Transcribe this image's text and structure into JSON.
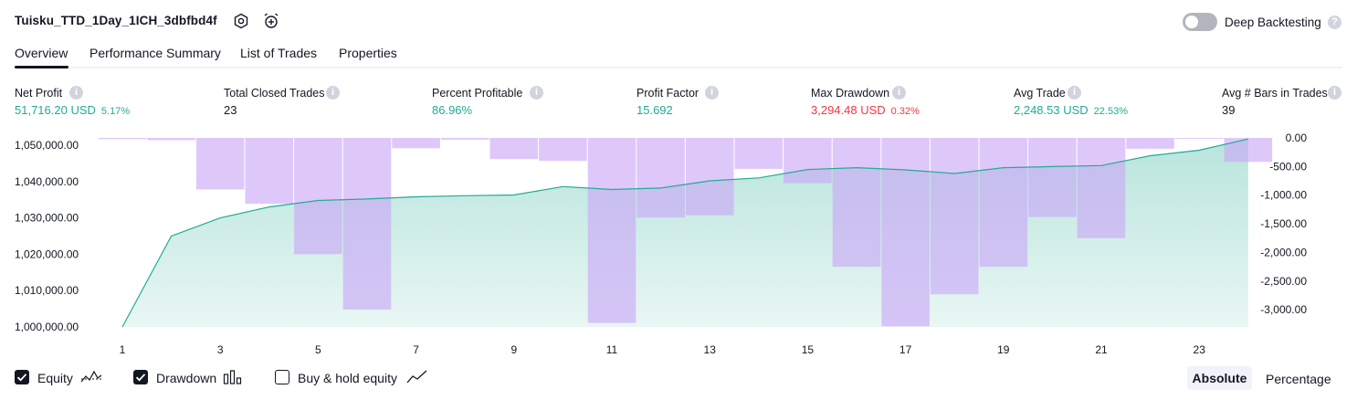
{
  "header": {
    "title": "Tuisku_TTD_1Day_1ICH_3dbfbd4f",
    "icons": [
      "settings-icon",
      "alarm-add-icon"
    ],
    "deep_backtesting_label": "Deep Backtesting",
    "deep_backtesting_enabled": false,
    "help_glyph": "?"
  },
  "tabs": [
    {
      "label": "Overview",
      "active": true
    },
    {
      "label": "Performance Summary",
      "active": false
    },
    {
      "label": "List of Trades",
      "active": false
    },
    {
      "label": "Properties",
      "active": false
    }
  ],
  "stats": [
    {
      "label": "Net Profit",
      "value": "51,716.20 USD",
      "sub": "5.17%",
      "color": "#22ab94"
    },
    {
      "label": "Total Closed Trades",
      "value": "23",
      "sub": "",
      "color": "#131722"
    },
    {
      "label": "Percent Profitable",
      "value": "86.96%",
      "sub": "",
      "color": "#22ab94"
    },
    {
      "label": "Profit Factor",
      "value": "15.692",
      "sub": "",
      "color": "#22ab94"
    },
    {
      "label": "Max Drawdown",
      "value": "3,294.48 USD",
      "sub": "0.32%",
      "color": "#f23645"
    },
    {
      "label": "Avg Trade",
      "value": "2,248.53 USD",
      "sub": "22.53%",
      "color": "#22ab94"
    },
    {
      "label": "Avg # Bars in Trades",
      "value": "39",
      "sub": "",
      "color": "#131722"
    }
  ],
  "info_glyph": "i",
  "chart_data": {
    "type": "area",
    "x": [
      1,
      2,
      3,
      4,
      5,
      6,
      7,
      8,
      9,
      10,
      11,
      12,
      13,
      14,
      15,
      16,
      17,
      18,
      19,
      20,
      21,
      22,
      23,
      24
    ],
    "x_tick_labels": [
      "1",
      "3",
      "5",
      "7",
      "9",
      "11",
      "13",
      "15",
      "17",
      "19",
      "21",
      "23"
    ],
    "left_ylim": [
      1000000,
      1052000
    ],
    "left_tick_labels": [
      "1,050,000.00",
      "1,040,000.00",
      "1,030,000.00",
      "1,020,000.00",
      "1,010,000.00",
      "1,000,000.00"
    ],
    "left_ticks": [
      1050000,
      1040000,
      1030000,
      1020000,
      1010000,
      1000000
    ],
    "right_ylim": [
      -3300,
      0
    ],
    "right_tick_labels": [
      "0.00",
      "-500.00",
      "-1,000.00",
      "-1,500.00",
      "-2,000.00",
      "-2,500.00",
      "-3,000.00"
    ],
    "right_ticks": [
      0,
      -500,
      -1000,
      -1500,
      -2000,
      -2500,
      -3000
    ],
    "series": [
      {
        "name": "Equity",
        "axis": "left",
        "color": "#22ab94",
        "values": [
          1000000,
          1025000,
          1030000,
          1033000,
          1034800,
          1035200,
          1035800,
          1036100,
          1036300,
          1038600,
          1037800,
          1038200,
          1040200,
          1041000,
          1043300,
          1043800,
          1043200,
          1042200,
          1043800,
          1044100,
          1044400,
          1047100,
          1048600,
          1051700
        ]
      },
      {
        "name": "Drawdown",
        "axis": "right",
        "color": "#c9a6f7",
        "values": [
          -20,
          -40,
          -900,
          -1150,
          -2030,
          -2995,
          -180,
          -30,
          -370,
          -400,
          -3230,
          -1390,
          -1350,
          -540,
          -790,
          -2250,
          -3290,
          -2730,
          -2250,
          -1380,
          -1750,
          -190,
          -10,
          -420
        ]
      }
    ]
  },
  "footer": {
    "equity_label": "Equity",
    "drawdown_label": "Drawdown",
    "buyhold_label": "Buy & hold equity",
    "equity_checked": true,
    "drawdown_checked": true,
    "buyhold_checked": false,
    "absolute_label": "Absolute",
    "percentage_label": "Percentage"
  }
}
